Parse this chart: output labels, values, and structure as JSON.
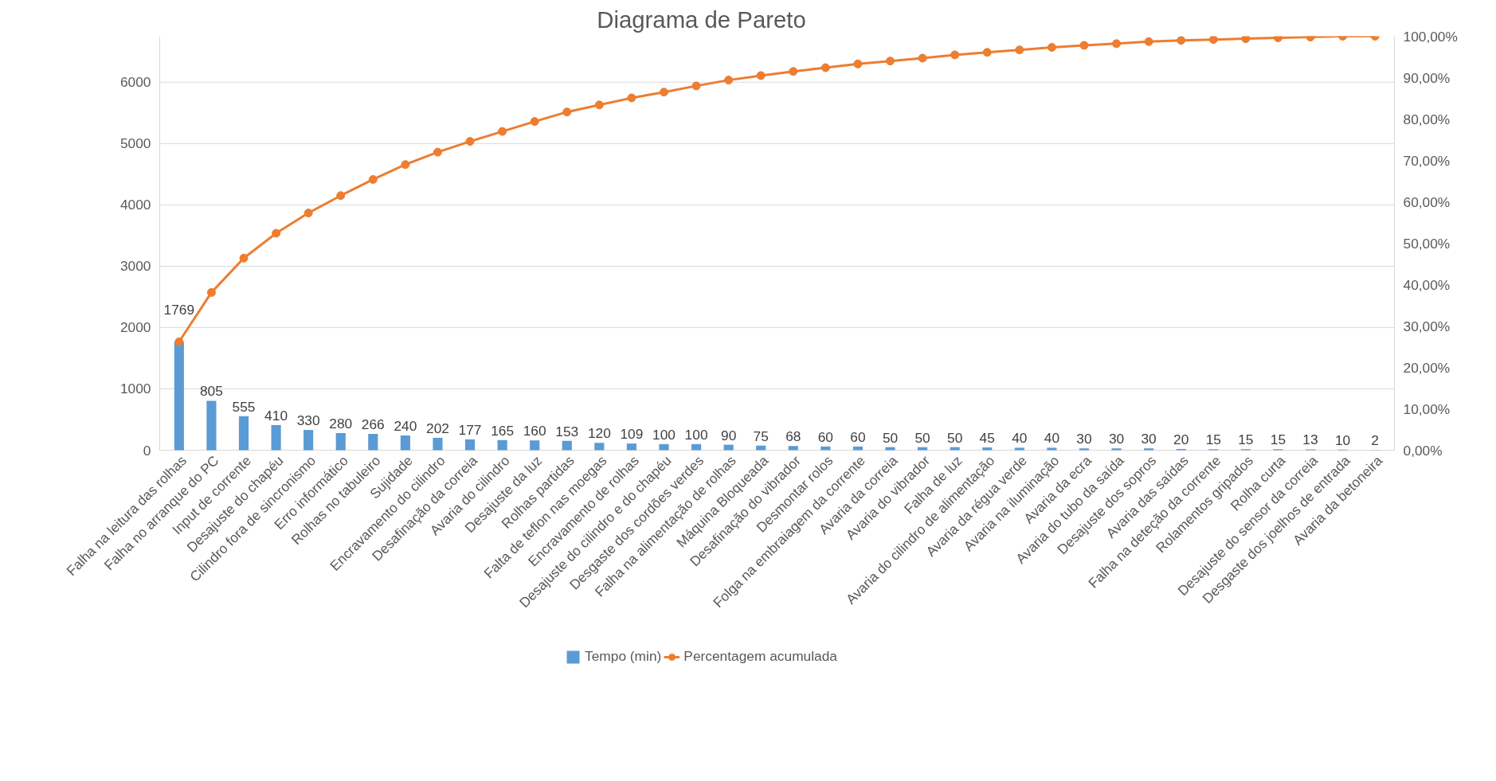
{
  "chart_data": {
    "type": "bar",
    "title": "Diagrama de Pareto",
    "categories": [
      "Falha na leitura das rolhas",
      "Falha no arranque do PC",
      "Input de corrente",
      "Desajuste do chapéu",
      "Cilindro fora de sincronismo",
      "Erro informático",
      "Rolhas no tabuleiro",
      "Sujidade",
      "Encravamento do cilindro",
      "Desafinação da correia",
      "Avaria do cilindro",
      "Desajuste da luz",
      "Rolhas partidas",
      "Falta de teflon nas moegas",
      "Encravamento de rolhas",
      "Desajuste do cilindro e do chapéu",
      "Desgaste dos cordões verdes",
      "Falha na alimentação de rolhas",
      "Máquina Bloqueada",
      "Desafinação do vibrador",
      "Desmontar rolos",
      "Folga na embraiagem da corrente",
      "Avaria da correia",
      "Avaria do vibrador",
      "Falha de luz",
      "Avaria do cilindro de alimentação",
      "Avaria da régua verde",
      "Avaria na iluminação",
      "Avaria da ecra",
      "Avaria do tubo da saída",
      "Desajuste dos sopros",
      "Avaria das saídas",
      "Falha na deteção da corrente",
      "Rolamentos gripados",
      "Rolha curta",
      "Desajuste do sensor da correia",
      "Desgaste dos joelhos de entrada",
      "Avaria da betoneira"
    ],
    "series": [
      {
        "name": "Tempo (min)",
        "color": "#5b9bd5",
        "data_labels": true,
        "values": [
          1769,
          805,
          555,
          410,
          330,
          280,
          266,
          240,
          202,
          177,
          165,
          160,
          153,
          120,
          109,
          100,
          100,
          90,
          75,
          68,
          60,
          60,
          50,
          50,
          50,
          45,
          40,
          40,
          30,
          30,
          30,
          20,
          15,
          15,
          15,
          13,
          10,
          2
        ]
      },
      {
        "name": "Percentagem acumulada",
        "type": "line",
        "axis": "y2",
        "color": "#ed7d31",
        "marker": "circle",
        "values": [
          26.2,
          38.1,
          46.4,
          52.4,
          57.3,
          61.5,
          65.4,
          69.0,
          72.0,
          74.6,
          77.0,
          79.4,
          81.7,
          83.4,
          85.1,
          86.5,
          88.0,
          89.4,
          90.5,
          91.5,
          92.4,
          93.3,
          94.0,
          94.7,
          95.5,
          96.1,
          96.7,
          97.3,
          97.8,
          98.2,
          98.7,
          99.0,
          99.2,
          99.4,
          99.6,
          99.8,
          100.0,
          100.0
        ]
      }
    ],
    "ylim": [
      0,
      6749
    ],
    "yticks": [
      0,
      1000,
      2000,
      3000,
      4000,
      5000,
      6000
    ],
    "y2lim": [
      0,
      100
    ],
    "y2ticks": [
      {
        "value": 0,
        "label": "0,00%"
      },
      {
        "value": 10,
        "label": "10,00%"
      },
      {
        "value": 20,
        "label": "20,00%"
      },
      {
        "value": 30,
        "label": "30,00%"
      },
      {
        "value": 40,
        "label": "40,00%"
      },
      {
        "value": 50,
        "label": "50,00%"
      },
      {
        "value": 60,
        "label": "60,00%"
      },
      {
        "value": 70,
        "label": "70,00%"
      },
      {
        "value": 80,
        "label": "80,00%"
      },
      {
        "value": 90,
        "label": "90,00%"
      },
      {
        "value": 100,
        "label": "100,00%"
      }
    ],
    "grid": "y",
    "legend": "bottom"
  }
}
